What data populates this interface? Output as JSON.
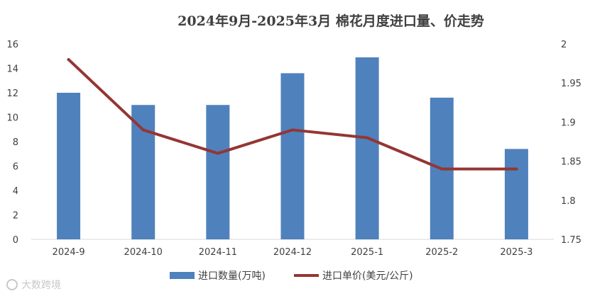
{
  "chart_data": {
    "type": "bar",
    "title": "2024年9月-2025年3月 棉花月度进口量、价走势",
    "categories": [
      "2024-9",
      "2024-10",
      "2024-11",
      "2024-12",
      "2025-1",
      "2025-2",
      "2025-3"
    ],
    "series": [
      {
        "name": "进口数量(万吨)",
        "type": "bar",
        "axis": "left",
        "color": "#4f81bd",
        "values": [
          12.0,
          11.0,
          11.0,
          13.6,
          14.9,
          11.6,
          7.4
        ]
      },
      {
        "name": "进口单价(美元/公斤)",
        "type": "line",
        "axis": "right",
        "color": "#943634",
        "values": [
          1.98,
          1.89,
          1.86,
          1.89,
          1.88,
          1.84,
          1.84
        ]
      }
    ],
    "y_left": {
      "range": [
        0,
        16
      ],
      "ticks": [
        "0",
        "2",
        "4",
        "6",
        "8",
        "10",
        "12",
        "14",
        "16"
      ]
    },
    "y_right": {
      "range": [
        1.75,
        2.0
      ],
      "ticks": [
        "1.75",
        "1.8",
        "1.85",
        "1.9",
        "1.95",
        "2"
      ]
    },
    "grid": false,
    "legend_position": "bottom"
  },
  "watermark": {
    "text": "大数跨境"
  }
}
